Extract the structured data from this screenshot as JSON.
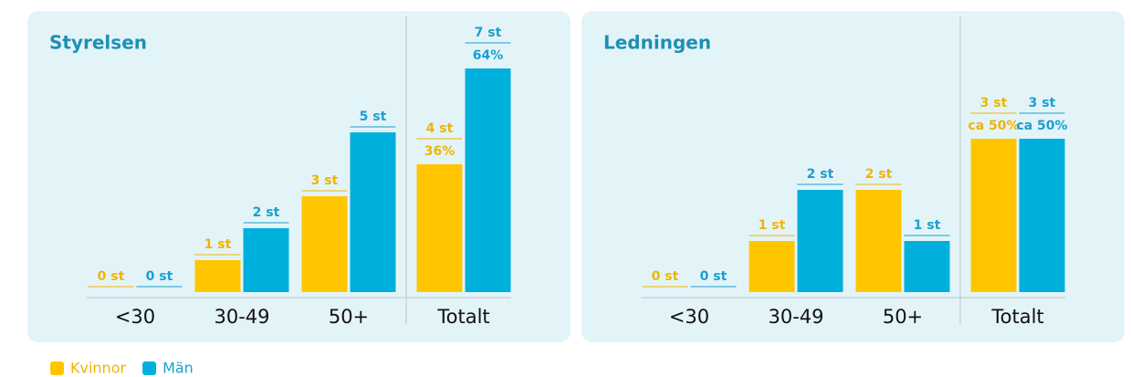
{
  "chart_data": [
    {
      "type": "bar",
      "title": "Styrelsen",
      "categories": [
        "<30",
        "30-49",
        "50+",
        "Totalt"
      ],
      "ylim": [
        0,
        8
      ],
      "series": [
        {
          "name": "Kvinnor",
          "color": "#ffc600",
          "values": [
            0,
            1,
            3,
            4
          ],
          "value_labels": [
            "0 st",
            "1 st",
            "3 st",
            "4 st"
          ],
          "percent_values": [
            null,
            null,
            null,
            36
          ],
          "percent_labels": [
            null,
            null,
            null,
            "36%"
          ]
        },
        {
          "name": "Män",
          "color": "#00b0dc",
          "values": [
            0,
            2,
            5,
            7
          ],
          "value_labels": [
            "0 st",
            "2 st",
            "5 st",
            "7 st"
          ],
          "percent_values": [
            null,
            null,
            null,
            64
          ],
          "percent_labels": [
            null,
            null,
            null,
            "64%"
          ]
        }
      ]
    },
    {
      "type": "bar",
      "title": "Ledningen",
      "categories": [
        "<30",
        "30-49",
        "50+",
        "Totalt"
      ],
      "ylim": [
        0,
        5
      ],
      "series": [
        {
          "color": "#ffc600",
          "values": [
            0,
            1,
            2,
            3
          ],
          "value_labels": [
            "0 st",
            "1 st",
            "2 st",
            "3 st"
          ],
          "percent_values": [
            null,
            null,
            null,
            50
          ],
          "percent_labels": [
            null,
            null,
            null,
            "ca 50%"
          ]
        },
        {
          "color": "#00b0dc",
          "values": [
            0,
            2,
            1,
            3
          ],
          "value_labels": [
            "0 st",
            "2 st",
            "1 st",
            "3 st"
          ],
          "percent_values": [
            null,
            null,
            null,
            50
          ],
          "percent_labels": [
            null,
            null,
            null,
            "ca 50%"
          ]
        }
      ]
    }
  ]
}
